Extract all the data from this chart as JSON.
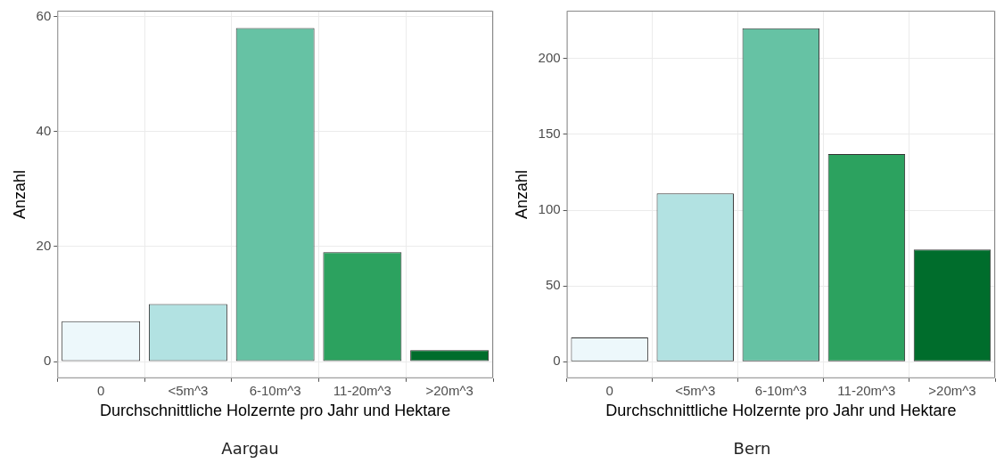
{
  "chart_data": [
    {
      "type": "bar",
      "title": "Aargau",
      "xlabel": "Durchschnittliche Holzernte pro Jahr und Hektare",
      "ylabel": "Anzahl",
      "categories": [
        "0",
        "<5m^3",
        "6-10m^3",
        "11-20m^3",
        ">20m^3"
      ],
      "values": [
        7,
        10,
        58,
        19,
        2
      ],
      "colors": [
        "#edf8fb",
        "#b2e2e2",
        "#66c2a4",
        "#2ca25f",
        "#006d2c"
      ],
      "ylim": [
        -2.9,
        61
      ],
      "yticks": [
        0,
        20,
        40,
        60
      ],
      "grid": true
    },
    {
      "type": "bar",
      "title": "Bern",
      "xlabel": "Durchschnittliche Holzernte pro Jahr und Hektare",
      "ylabel": "Anzahl",
      "categories": [
        "0",
        "<5m^3",
        "6-10m^3",
        "11-20m^3",
        ">20m^3"
      ],
      "values": [
        16,
        111,
        220,
        137,
        74
      ],
      "colors": [
        "#edf8fb",
        "#b2e2e2",
        "#66c2a4",
        "#2ca25f",
        "#006d2c"
      ],
      "ylim": [
        -10.9,
        231.6
      ],
      "yticks": [
        0,
        50,
        100,
        150,
        200
      ],
      "grid": true
    }
  ]
}
